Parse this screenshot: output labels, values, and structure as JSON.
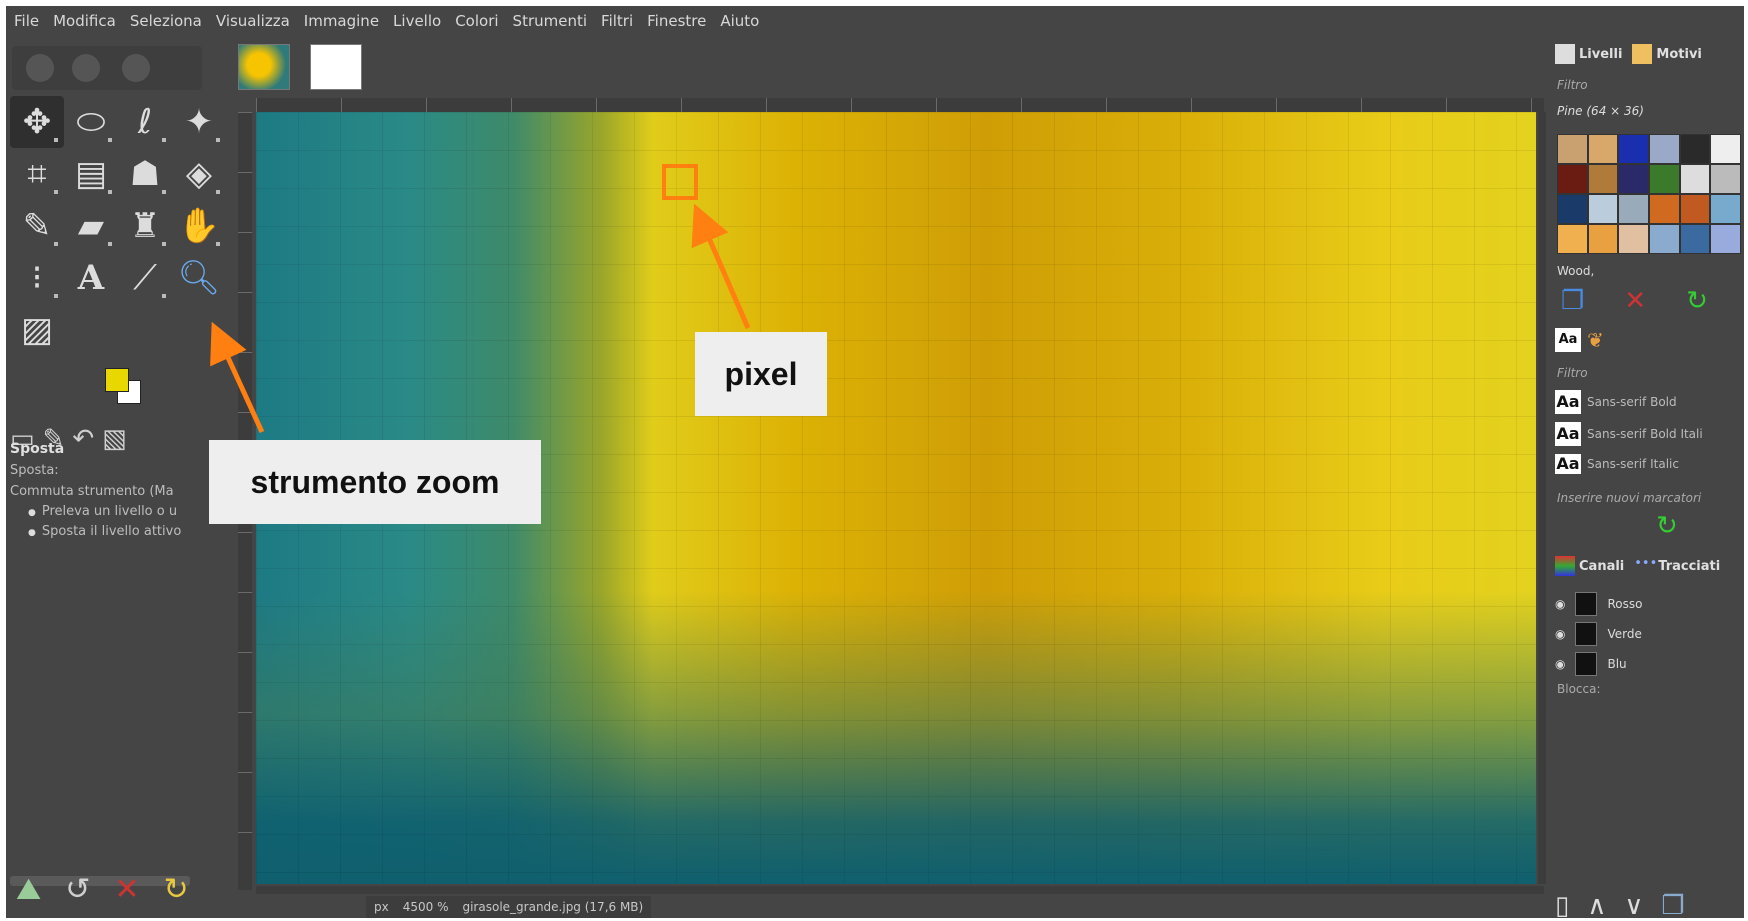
{
  "menubar": {
    "items": [
      "File",
      "Modifica",
      "Seleziona",
      "Visualizza",
      "Immagine",
      "Livello",
      "Colori",
      "Strumenti",
      "Filtri",
      "Finestre",
      "Aiuto"
    ]
  },
  "tool_options": {
    "title": "Sposta",
    "move_label": "Sposta:",
    "toggle_label": "Commuta strumento (Ma",
    "option_1": "Preleva un livello o u",
    "option_2": "Sposta il livello attivo"
  },
  "dock": {
    "tab_layers": "Livelli",
    "tab_patterns": "Motivi",
    "filter_label": "Filtro",
    "pattern_name": "Pine (64 × 36)",
    "pattern_tag": "Wood,",
    "fonts": [
      "Sans-serif Bold",
      "Sans-serif Bold Itali",
      "Sans-serif Italic"
    ],
    "font_tag_placeholder": "Inserire nuovi marcatori",
    "tab_channels": "Canali",
    "tab_paths": "Tracciati",
    "channels": [
      "Rosso",
      "Verde",
      "Blu"
    ],
    "lock_label": "Blocca:"
  },
  "statusbar": {
    "unit": "px",
    "zoom": "4500 %",
    "file_info": "girasole_grande.jpg (17,6 MB)"
  },
  "callouts": {
    "pixel": "pixel",
    "zoom_tool": "strumento zoom"
  },
  "colors": {
    "accent_orange": "#ff7f10",
    "foreground": "#e8d800",
    "background": "#ffffff"
  }
}
